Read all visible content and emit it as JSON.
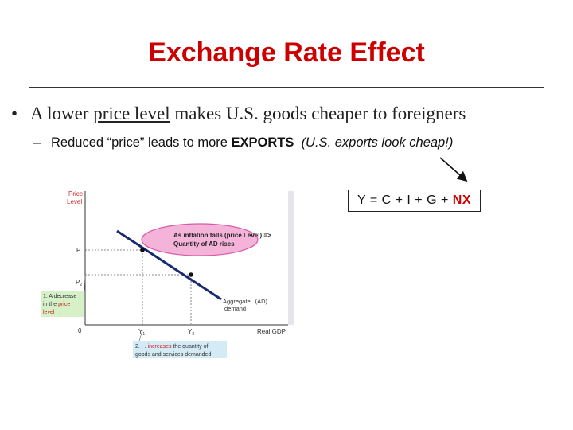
{
  "slide": {
    "title": "Exchange Rate Effect",
    "bullet": {
      "before": "A lower ",
      "underlined": "price level",
      "after": " makes U.S. goods cheaper to foreigners"
    },
    "sub_bullet": {
      "dash": "–",
      "before": "Reduced “price” leads to more ",
      "bold": "EXPORTS",
      "italic": "(U.S. exports look cheap!)"
    },
    "equation": {
      "main": "Y = C + I + G + ",
      "highlight": "NX"
    }
  },
  "graph": {
    "y_axis_label_line1": "Price",
    "y_axis_label_line2": "Level",
    "x_axis_label": "Real GDP",
    "p1": "P",
    "p2": "P",
    "p2_sub": "2",
    "y1": "Y",
    "y1_sub": "1",
    "y2": "Y",
    "y2_sub": "2",
    "origin": "0",
    "curve_label_line1": "Aggregate",
    "curve_label_line1_suffix": "(AD)",
    "curve_label_line2": "demand",
    "callout_line1": "As inflation falls (price Level) =>",
    "callout_line2": "Quantity of AD rises",
    "note1_line1": "1. A decrease",
    "note1_line2_a": "in the ",
    "note1_line2_b": "price",
    "note1_line3_a": "level",
    "note1_line3_b": " . .",
    "note2_line1_a": "2. . . ",
    "note2_line1_b": "increases",
    "note2_line1_c": " the quantity of",
    "note2_line2": "goods and services demanded.",
    "colors": {
      "axis_label_red": "#cc2222",
      "curve_navy": "#1a2a6e",
      "callout_fill": "#f4b3d8",
      "callout_border": "#d65aa8",
      "note_bg": "#d6f0c8",
      "note2_bg": "#d4ebf5"
    }
  }
}
